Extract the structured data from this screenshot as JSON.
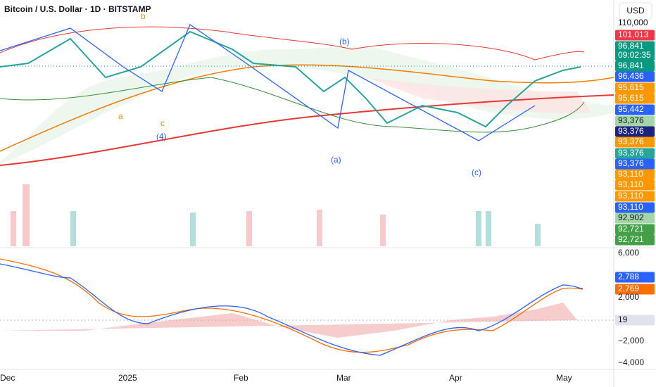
{
  "header": {
    "title": "Bitcoin / U.S. Dollar · 1D · BITSTAMP",
    "currency": "USD"
  },
  "wave_labels": [
    {
      "text": "b",
      "color": "#f7931a"
    },
    {
      "text": "c",
      "color": "#f7931a"
    },
    {
      "text": "a",
      "color": "#f7931a"
    },
    {
      "text": "(4)",
      "color": "#2962ff"
    },
    {
      "text": "(b)",
      "color": "#2962ff"
    },
    {
      "text": "(a)",
      "color": "#2962ff"
    },
    {
      "text": "(c)",
      "color": "#2962ff"
    }
  ],
  "price_scale": [
    {
      "text": "110,000",
      "color": null
    },
    {
      "text": "101,013",
      "color": "#f23645"
    },
    {
      "text": "96,841",
      "sub": "09:02:35",
      "color": "#089981"
    },
    {
      "text": "96,841",
      "color": "#089981"
    },
    {
      "text": "96,436",
      "color": "#2962ff"
    },
    {
      "text": "95,615",
      "color": "#ff9800"
    },
    {
      "text": "95,615",
      "color": "#ff9800"
    },
    {
      "text": "95,442",
      "color": "#2962ff"
    },
    {
      "text": "93,376",
      "color": "#a5d6a7"
    },
    {
      "text": "93,376",
      "color": "#1a237e"
    },
    {
      "text": "93,376",
      "color": "#ff9800"
    },
    {
      "text": "93,376",
      "color": "#26a69a"
    },
    {
      "text": "93,376",
      "color": "#2962ff"
    },
    {
      "text": "93,110",
      "color": "#ff9800"
    },
    {
      "text": "93,110",
      "color": "#ff9800"
    },
    {
      "text": "93,110",
      "color": "#ff9800"
    },
    {
      "text": "93,110",
      "color": "#2962ff"
    },
    {
      "text": "92,902",
      "color": "#a5d6a7"
    },
    {
      "text": "92,721",
      "color": "#43a047"
    },
    {
      "text": "92,721",
      "color": "#43a047"
    }
  ],
  "macd_scale": [
    {
      "text": "6,000",
      "color": null
    },
    {
      "text": "2,788",
      "color": "#2962ff"
    },
    {
      "text": "2,769",
      "color": "#ff6d00"
    },
    {
      "text": "2,000",
      "color": null
    },
    {
      "text": "19",
      "color": "#e0e3eb"
    },
    {
      "text": "−2,000",
      "color": null
    },
    {
      "text": "−4,000",
      "color": null
    }
  ],
  "time_axis": [
    "Dec",
    "2025",
    "Feb",
    "Mar",
    "Apr",
    "May"
  ]
}
